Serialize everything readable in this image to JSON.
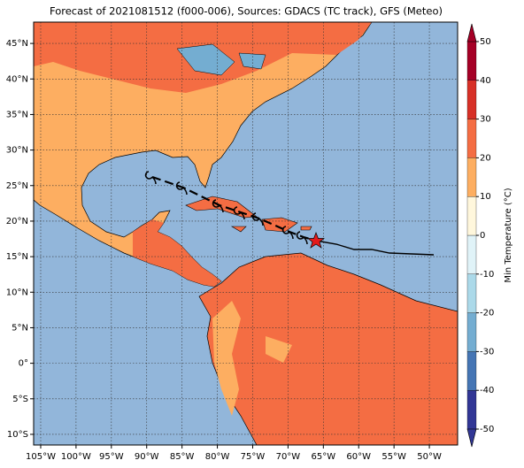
{
  "map": {
    "title": "Forecast of 2021081512 (f000-006), Sources: GDACS (TC track), GFS (Meteo)",
    "lonlim": [
      -106,
      -46
    ],
    "latlim": [
      -11.5,
      48
    ],
    "lon_ticks": [
      {
        "value": -105,
        "label": "105°W"
      },
      {
        "value": -100,
        "label": "100°W"
      },
      {
        "value": -95,
        "label": "95°W"
      },
      {
        "value": -90,
        "label": "90°W"
      },
      {
        "value": -85,
        "label": "85°W"
      },
      {
        "value": -80,
        "label": "80°W"
      },
      {
        "value": -75,
        "label": "75°W"
      },
      {
        "value": -70,
        "label": "70°W"
      },
      {
        "value": -65,
        "label": "65°W"
      },
      {
        "value": -60,
        "label": "60°W"
      },
      {
        "value": -55,
        "label": "55°W"
      },
      {
        "value": -50,
        "label": "50°W"
      }
    ],
    "lat_ticks": [
      {
        "value": 45,
        "label": "45°N"
      },
      {
        "value": 40,
        "label": "40°N"
      },
      {
        "value": 35,
        "label": "35°N"
      },
      {
        "value": 30,
        "label": "30°N"
      },
      {
        "value": 25,
        "label": "25°N"
      },
      {
        "value": 20,
        "label": "20°N"
      },
      {
        "value": 15,
        "label": "15°N"
      },
      {
        "value": 10,
        "label": "10°N"
      },
      {
        "value": 5,
        "label": "5°N"
      },
      {
        "value": 0,
        "label": "0°"
      },
      {
        "value": -5,
        "label": "5°S"
      },
      {
        "value": -10,
        "label": "10°S"
      }
    ],
    "colorbar": {
      "label": "Min Temperature (°C)",
      "lim": [
        -50,
        50
      ],
      "ticks": [
        -50,
        -40,
        -30,
        -20,
        -10,
        0,
        10,
        20,
        30,
        40,
        50
      ],
      "colors": [
        "#313695",
        "#4575b4",
        "#74add1",
        "#abd9e9",
        "#e0f3f8",
        "#fff7dc",
        "#fdae61",
        "#f46d43",
        "#d73027",
        "#a50026"
      ]
    }
  }
}
